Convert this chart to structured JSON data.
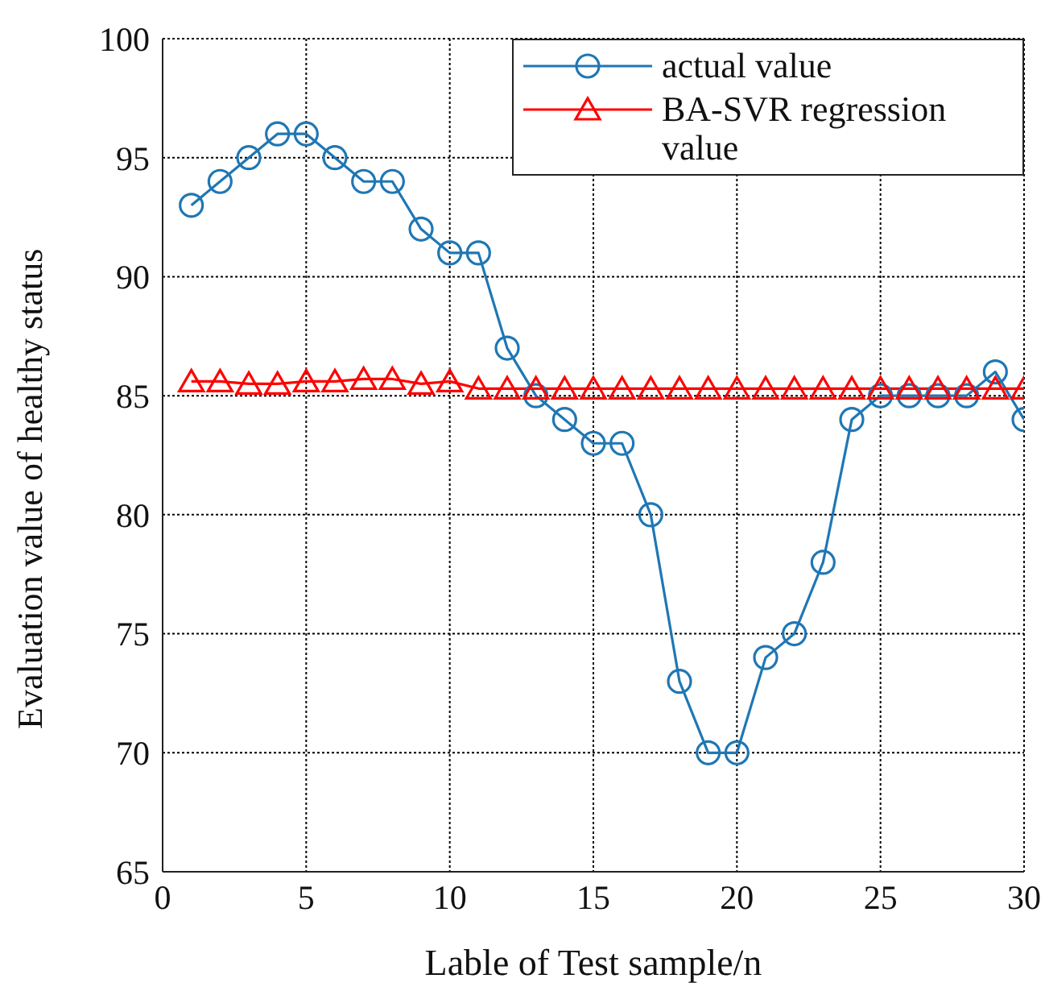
{
  "chart_data": {
    "type": "line",
    "xlabel": "Lable of Test sample/n",
    "ylabel": "Evaluation value of healthy status",
    "x": [
      1,
      2,
      3,
      4,
      5,
      6,
      7,
      8,
      9,
      10,
      11,
      12,
      13,
      14,
      15,
      16,
      17,
      18,
      19,
      20,
      21,
      22,
      23,
      24,
      25,
      26,
      27,
      28,
      29,
      30
    ],
    "series": [
      {
        "name": "actual value",
        "color": "#1f77b4",
        "marker": "circle",
        "values": [
          93,
          94,
          95,
          96,
          96,
          95,
          94,
          94,
          92,
          91,
          91,
          87,
          85,
          84,
          83,
          83,
          80,
          73,
          70,
          70,
          74,
          75,
          78,
          84,
          85,
          85,
          85,
          85,
          86,
          84
        ]
      },
      {
        "name": "BA-SVR regression value",
        "color": "#ff0000",
        "marker": "triangle",
        "values": [
          85.6,
          85.6,
          85.5,
          85.5,
          85.6,
          85.6,
          85.7,
          85.7,
          85.5,
          85.6,
          85.3,
          85.3,
          85.3,
          85.3,
          85.3,
          85.3,
          85.3,
          85.3,
          85.3,
          85.3,
          85.3,
          85.3,
          85.3,
          85.3,
          85.3,
          85.3,
          85.3,
          85.3,
          85.3,
          85.3
        ]
      }
    ],
    "xlim": [
      0,
      30
    ],
    "xticks": [
      0,
      5,
      10,
      15,
      20,
      25,
      30
    ],
    "ylim": [
      65,
      100
    ],
    "yticks": [
      65,
      70,
      75,
      80,
      85,
      90,
      95,
      100
    ],
    "grid": true,
    "legend": "top right",
    "line_style": "solid"
  }
}
